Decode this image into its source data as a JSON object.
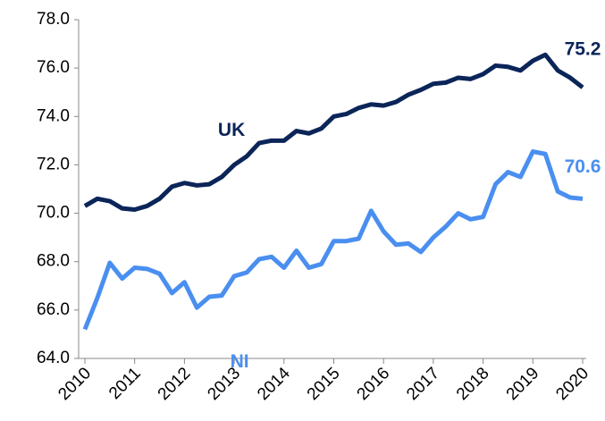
{
  "chart_data": {
    "type": "line",
    "x": [
      2010,
      2010.25,
      2010.5,
      2010.75,
      2011,
      2011.25,
      2011.5,
      2011.75,
      2012,
      2012.25,
      2012.5,
      2012.75,
      2013,
      2013.25,
      2013.5,
      2013.75,
      2014,
      2014.25,
      2014.5,
      2014.75,
      2015,
      2015.25,
      2015.5,
      2015.75,
      2016,
      2016.25,
      2016.5,
      2016.75,
      2017,
      2017.25,
      2017.5,
      2017.75,
      2018,
      2018.25,
      2018.5,
      2018.75,
      2019,
      2019.25,
      2019.5,
      2019.75,
      2020
    ],
    "xlim": [
      2010,
      2020
    ],
    "xticks": [
      2010,
      2011,
      2012,
      2013,
      2014,
      2015,
      2016,
      2017,
      2018,
      2019,
      2020
    ],
    "ylim": [
      64,
      78
    ],
    "yticks": [
      {
        "value": 64,
        "label": "64.0"
      },
      {
        "value": 66,
        "label": "66.0"
      },
      {
        "value": 68,
        "label": "68.0"
      },
      {
        "value": 70,
        "label": "70.0"
      },
      {
        "value": 72,
        "label": "72.0"
      },
      {
        "value": 74,
        "label": "74.0"
      },
      {
        "value": 76,
        "label": "76.0"
      },
      {
        "value": 78,
        "label": "78.0"
      }
    ],
    "grid": false,
    "series": [
      {
        "name": "UK",
        "color": "#0b2559",
        "values": [
          70.3,
          70.6,
          70.5,
          70.2,
          70.15,
          70.3,
          70.6,
          71.1,
          71.25,
          71.15,
          71.2,
          71.5,
          72.0,
          72.35,
          72.9,
          73.0,
          73.0,
          73.4,
          73.3,
          73.5,
          74.0,
          74.1,
          74.35,
          74.5,
          74.45,
          74.6,
          74.9,
          75.1,
          75.35,
          75.4,
          75.6,
          75.55,
          75.75,
          76.1,
          76.05,
          75.9,
          76.3,
          76.55,
          75.9,
          75.6,
          75.2
        ],
        "value_labels": [
          null,
          null,
          null,
          null,
          null,
          null,
          null,
          null,
          null,
          null,
          null,
          null,
          null,
          null,
          null,
          null,
          null,
          null,
          null,
          null,
          null,
          null,
          null,
          null,
          null,
          null,
          null,
          null,
          null,
          null,
          null,
          null,
          null,
          null,
          null,
          null,
          null,
          null,
          null,
          null,
          "75.2"
        ]
      },
      {
        "name": "NI",
        "color": "#4a8ff0",
        "values": [
          65.2,
          66.5,
          67.95,
          67.3,
          67.75,
          67.7,
          67.5,
          66.7,
          67.15,
          66.1,
          66.55,
          66.6,
          67.4,
          67.55,
          68.1,
          68.2,
          67.75,
          68.45,
          67.75,
          67.9,
          68.85,
          68.85,
          68.95,
          70.1,
          69.25,
          68.7,
          68.75,
          68.4,
          69.0,
          69.45,
          70.0,
          69.75,
          69.85,
          71.2,
          71.7,
          71.5,
          72.55,
          72.45,
          70.9,
          70.65,
          70.6
        ],
        "value_labels": [
          null,
          null,
          null,
          null,
          null,
          null,
          null,
          null,
          null,
          null,
          null,
          null,
          null,
          null,
          null,
          null,
          null,
          null,
          null,
          null,
          null,
          null,
          null,
          null,
          null,
          null,
          null,
          null,
          null,
          null,
          null,
          null,
          null,
          null,
          null,
          null,
          null,
          null,
          null,
          null,
          "70.6"
        ]
      }
    ]
  }
}
